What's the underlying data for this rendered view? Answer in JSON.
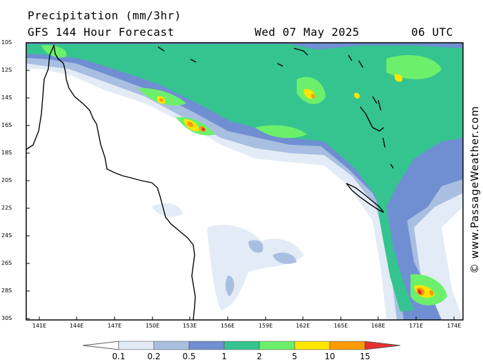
{
  "header": {
    "title": "Precipitation (mm/3hr)",
    "subtitle": "GFS 144 Hour Forecast",
    "valid_date": "Wed 07 May 2025",
    "valid_time": "06 UTC"
  },
  "credit": "© www.PassageWeather.com",
  "lat_labels": [
    "10S",
    "12S",
    "14S",
    "16S",
    "18S",
    "20S",
    "22S",
    "24S",
    "26S",
    "28S",
    "30S"
  ],
  "lon_labels": [
    "141E",
    "144E",
    "147E",
    "150E",
    "153E",
    "156E",
    "159E",
    "162E",
    "165E",
    "168E",
    "171E",
    "174E"
  ],
  "colorbar": {
    "levels": [
      "0.1",
      "0.2",
      "0.5",
      "1",
      "2",
      "5",
      "10",
      "15"
    ],
    "colors": [
      "#ffffff",
      "#e3ebf6",
      "#a9bfe1",
      "#6f8fd2",
      "#35c48f",
      "#6cf06c",
      "#ffe600",
      "#ff9a00",
      "#e83030"
    ]
  },
  "palette": {
    "light": "#e3ebf6",
    "lightblue": "#a9bfe1",
    "blue": "#6f8fd2",
    "teal": "#35c48f",
    "green": "#6cf06c",
    "yellow": "#ffe600",
    "orange": "#ff9a00",
    "red": "#e83030",
    "coast": "#000000"
  }
}
